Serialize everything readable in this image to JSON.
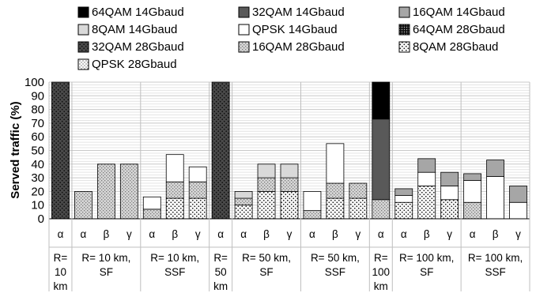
{
  "chart_data": {
    "type": "bar",
    "stacked": true,
    "ylabel": "Served traffic (%)",
    "ylim": [
      0,
      100
    ],
    "yticks": [
      0,
      10,
      20,
      30,
      40,
      50,
      60,
      70,
      80,
      90,
      100
    ],
    "grid": true,
    "legend_position": "top",
    "series": [
      {
        "name": "64QAM 14Gbaud",
        "fill": "solid-black"
      },
      {
        "name": "32QAM 14Gbaud",
        "fill": "solid-dark-gray"
      },
      {
        "name": "16QAM 14Gbaud",
        "fill": "solid-light-gray"
      },
      {
        "name": "8QAM 14Gbaud",
        "fill": "solid-lighter-gray"
      },
      {
        "name": "QPSK 14Gbaud",
        "fill": "white"
      },
      {
        "name": "64QAM 28Gbaud",
        "fill": "dense-dots-black"
      },
      {
        "name": "32QAM 28Gbaud",
        "fill": "dots-dark"
      },
      {
        "name": "16QAM 28Gbaud",
        "fill": "checker-gray"
      },
      {
        "name": "8QAM 28Gbaud",
        "fill": "dots-sparse-white"
      },
      {
        "name": "QPSK 28Gbaud",
        "fill": "dots-fine-white"
      }
    ],
    "categories": [
      "α",
      "α",
      "β",
      "γ",
      "α",
      "β",
      "γ",
      "α",
      "α",
      "β",
      "γ",
      "α",
      "β",
      "γ",
      "α",
      "α",
      "β",
      "γ",
      "α",
      "β",
      "γ"
    ],
    "groups": [
      {
        "label_lines": [
          "R=",
          "10",
          "km"
        ],
        "count": 1
      },
      {
        "label_lines": [
          "R= 10 km,",
          "SF"
        ],
        "count": 3
      },
      {
        "label_lines": [
          "R= 10 km,",
          "SSF"
        ],
        "count": 3
      },
      {
        "label_lines": [
          "R=",
          "50",
          "km"
        ],
        "count": 1
      },
      {
        "label_lines": [
          "R= 50 km,",
          "SF"
        ],
        "count": 3
      },
      {
        "label_lines": [
          "R= 50 km,",
          "SSF"
        ],
        "count": 3
      },
      {
        "label_lines": [
          "R=",
          "100",
          "km"
        ],
        "count": 1
      },
      {
        "label_lines": [
          "R= 100 km,",
          "SF"
        ],
        "count": 3
      },
      {
        "label_lines": [
          "R= 100 km,",
          "SSF"
        ],
        "count": 3
      }
    ],
    "bars": [
      [
        {
          "series": "32QAM 28Gbaud",
          "value": 100
        }
      ],
      [
        {
          "series": "16QAM 28Gbaud",
          "value": 20
        }
      ],
      [
        {
          "series": "16QAM 28Gbaud",
          "value": 40
        }
      ],
      [
        {
          "series": "16QAM 28Gbaud",
          "value": 40
        }
      ],
      [
        {
          "series": "16QAM 28Gbaud",
          "value": 7
        },
        {
          "series": "QPSK 14Gbaud",
          "value": 9
        }
      ],
      [
        {
          "series": "8QAM 28Gbaud",
          "value": 15
        },
        {
          "series": "16QAM 28Gbaud",
          "value": 12
        },
        {
          "series": "QPSK 14Gbaud",
          "value": 20
        }
      ],
      [
        {
          "series": "8QAM 28Gbaud",
          "value": 15
        },
        {
          "series": "16QAM 28Gbaud",
          "value": 12
        },
        {
          "series": "QPSK 14Gbaud",
          "value": 11
        }
      ],
      [
        {
          "series": "32QAM 28Gbaud",
          "value": 100
        }
      ],
      [
        {
          "series": "8QAM 28Gbaud",
          "value": 10
        },
        {
          "series": "16QAM 28Gbaud",
          "value": 5
        },
        {
          "series": "8QAM 14Gbaud",
          "value": 5
        }
      ],
      [
        {
          "series": "8QAM 28Gbaud",
          "value": 20
        },
        {
          "series": "16QAM 28Gbaud",
          "value": 10
        },
        {
          "series": "8QAM 14Gbaud",
          "value": 10
        }
      ],
      [
        {
          "series": "8QAM 28Gbaud",
          "value": 20
        },
        {
          "series": "16QAM 28Gbaud",
          "value": 10
        },
        {
          "series": "8QAM 14Gbaud",
          "value": 10
        }
      ],
      [
        {
          "series": "16QAM 28Gbaud",
          "value": 6
        },
        {
          "series": "QPSK 14Gbaud",
          "value": 14
        }
      ],
      [
        {
          "series": "8QAM 28Gbaud",
          "value": 15
        },
        {
          "series": "16QAM 28Gbaud",
          "value": 11
        },
        {
          "series": "QPSK 14Gbaud",
          "value": 29
        }
      ],
      [
        {
          "series": "8QAM 28Gbaud",
          "value": 15
        },
        {
          "series": "16QAM 28Gbaud",
          "value": 11
        }
      ],
      [
        {
          "series": "16QAM 28Gbaud",
          "value": 14
        },
        {
          "series": "32QAM 14Gbaud",
          "value": 59
        },
        {
          "series": "64QAM 14Gbaud",
          "value": 27
        }
      ],
      [
        {
          "series": "8QAM 28Gbaud",
          "value": 12
        },
        {
          "series": "QPSK 14Gbaud",
          "value": 5
        },
        {
          "series": "16QAM 14Gbaud",
          "value": 5
        }
      ],
      [
        {
          "series": "8QAM 28Gbaud",
          "value": 24
        },
        {
          "series": "QPSK 14Gbaud",
          "value": 10
        },
        {
          "series": "16QAM 14Gbaud",
          "value": 10
        }
      ],
      [
        {
          "series": "8QAM 28Gbaud",
          "value": 14
        },
        {
          "series": "QPSK 14Gbaud",
          "value": 10
        },
        {
          "series": "16QAM 14Gbaud",
          "value": 10
        }
      ],
      [
        {
          "series": "16QAM 28Gbaud",
          "value": 12
        },
        {
          "series": "QPSK 14Gbaud",
          "value": 16
        },
        {
          "series": "16QAM 14Gbaud",
          "value": 5
        }
      ],
      [
        {
          "series": "QPSK 14Gbaud",
          "value": 31
        },
        {
          "series": "16QAM 14Gbaud",
          "value": 12
        }
      ],
      [
        {
          "series": "QPSK 14Gbaud",
          "value": 12
        },
        {
          "series": "16QAM 14Gbaud",
          "value": 12
        }
      ]
    ]
  }
}
